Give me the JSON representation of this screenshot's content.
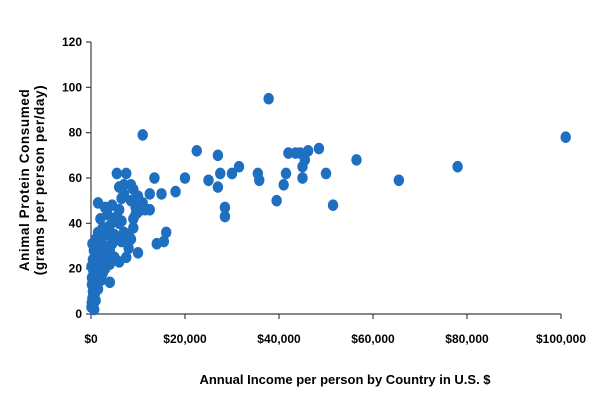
{
  "chart_data": {
    "type": "scatter",
    "title": "",
    "xlabel": "Annual Income per person by Country in U.S. $",
    "ylabel_lines": [
      "Animal Protein Consumed",
      "(grams per person per/day)"
    ],
    "xlim": [
      0,
      100000
    ],
    "ylim": [
      0,
      120
    ],
    "x_ticks": [
      0,
      20000,
      40000,
      60000,
      80000,
      100000
    ],
    "x_tick_labels": [
      "$0",
      "$20,000",
      "$40,000",
      "$60,000",
      "$80,000",
      "$100,000"
    ],
    "y_ticks": [
      0,
      20,
      40,
      60,
      80,
      100,
      120
    ],
    "y_tick_labels": [
      "0",
      "20",
      "40",
      "60",
      "80",
      "100",
      "120"
    ],
    "grid": false,
    "legend": "none",
    "marker_color": "#1F6FC1",
    "axis_color": "#404040",
    "points": [
      [
        101000,
        78
      ],
      [
        78000,
        65
      ],
      [
        65500,
        59
      ],
      [
        56500,
        68
      ],
      [
        51500,
        48
      ],
      [
        50000,
        62
      ],
      [
        48500,
        73
      ],
      [
        46200,
        72
      ],
      [
        45500,
        68
      ],
      [
        45000,
        65
      ],
      [
        45000,
        60
      ],
      [
        44500,
        71
      ],
      [
        43500,
        71
      ],
      [
        42000,
        71
      ],
      [
        41500,
        62
      ],
      [
        41000,
        57
      ],
      [
        39500,
        50
      ],
      [
        37800,
        95
      ],
      [
        35800,
        59
      ],
      [
        35500,
        62
      ],
      [
        31500,
        65
      ],
      [
        30000,
        62
      ],
      [
        28500,
        43
      ],
      [
        28500,
        47
      ],
      [
        27500,
        62
      ],
      [
        27000,
        70
      ],
      [
        27000,
        56
      ],
      [
        25000,
        59
      ],
      [
        22500,
        72
      ],
      [
        20000,
        60
      ],
      [
        18000,
        54
      ],
      [
        16000,
        36
      ],
      [
        15500,
        32
      ],
      [
        15000,
        53
      ],
      [
        14000,
        31
      ],
      [
        13500,
        60
      ],
      [
        12500,
        53
      ],
      [
        12500,
        46
      ],
      [
        11500,
        46
      ],
      [
        11000,
        49
      ],
      [
        11000,
        79
      ],
      [
        10500,
        46
      ],
      [
        10000,
        27
      ],
      [
        10000,
        52
      ],
      [
        9500,
        44
      ],
      [
        9500,
        47
      ],
      [
        9000,
        55
      ],
      [
        9000,
        42
      ],
      [
        8500,
        50
      ],
      [
        8500,
        57
      ],
      [
        8000,
        35
      ],
      [
        8000,
        29
      ],
      [
        7500,
        25
      ],
      [
        7500,
        62
      ],
      [
        7000,
        53
      ],
      [
        7000,
        57
      ],
      [
        6500,
        51
      ],
      [
        6500,
        41
      ],
      [
        6000,
        56
      ],
      [
        6000,
        40
      ],
      [
        6000,
        23
      ],
      [
        5500,
        62
      ],
      [
        5500,
        43
      ],
      [
        5000,
        35
      ],
      [
        5000,
        25
      ],
      [
        4500,
        48
      ],
      [
        4500,
        31
      ],
      [
        4000,
        39
      ],
      [
        4000,
        22
      ],
      [
        4000,
        14
      ],
      [
        3500,
        35
      ],
      [
        3500,
        27
      ],
      [
        3000,
        30
      ],
      [
        3000,
        20
      ],
      [
        3000,
        47
      ],
      [
        2500,
        28
      ],
      [
        2500,
        38
      ],
      [
        2500,
        23
      ],
      [
        2200,
        15
      ],
      [
        2000,
        17
      ],
      [
        2000,
        42
      ],
      [
        2000,
        25
      ],
      [
        2000,
        32
      ],
      [
        1500,
        11
      ],
      [
        1500,
        36
      ],
      [
        1500,
        49
      ],
      [
        1500,
        20
      ],
      [
        1200,
        27
      ],
      [
        1000,
        6
      ],
      [
        1000,
        22
      ],
      [
        1000,
        33
      ],
      [
        800,
        9
      ],
      [
        700,
        2
      ],
      [
        600,
        14
      ],
      [
        600,
        28
      ],
      [
        500,
        4
      ],
      [
        500,
        19
      ],
      [
        400,
        10
      ],
      [
        400,
        24
      ],
      [
        300,
        7
      ],
      [
        300,
        31
      ],
      [
        200,
        16
      ],
      [
        200,
        13
      ],
      [
        150,
        5
      ],
      [
        100,
        21
      ],
      [
        100,
        3
      ],
      [
        5500,
        33
      ],
      [
        3500,
        44
      ],
      [
        7000,
        36
      ],
      [
        9000,
        38
      ],
      [
        6500,
        32
      ],
      [
        4500,
        35
      ],
      [
        3000,
        25
      ],
      [
        2500,
        18
      ],
      [
        1800,
        30
      ],
      [
        8500,
        33
      ],
      [
        10000,
        45
      ],
      [
        4000,
        28
      ],
      [
        5000,
        41
      ],
      [
        6000,
        46
      ]
    ]
  }
}
